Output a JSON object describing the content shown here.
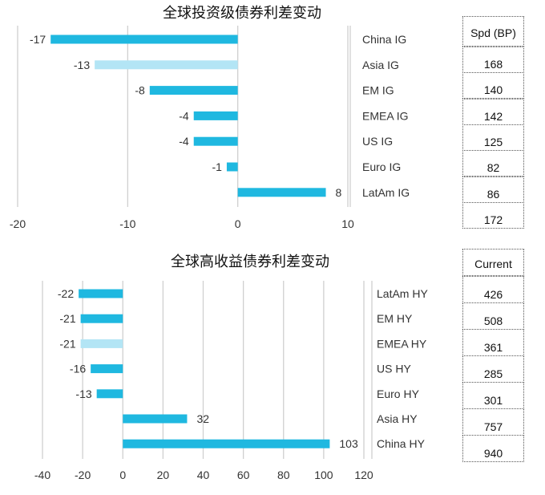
{
  "charts": [
    {
      "title": "全球投资级债券利差变动",
      "type": "bar",
      "orientation": "horizontal",
      "categories": [
        "China IG",
        "Asia IG",
        "EM IG",
        "EMEA IG",
        "US IG",
        "Euro IG",
        "LatAm IG"
      ],
      "values": [
        -17,
        -13,
        -8,
        -4,
        -4,
        -1,
        8
      ],
      "highlight_index": 1,
      "xlim": [
        -20,
        10
      ],
      "xticks": [
        "-20",
        "-10",
        "0",
        "10"
      ],
      "grid": true,
      "colors": {
        "bar": "#1FB8E0",
        "highlight": "#B3E5F5",
        "grid": "#D0D0D0"
      }
    },
    {
      "title": "全球高收益债券利差变动",
      "type": "bar",
      "orientation": "horizontal",
      "categories": [
        "LatAm HY",
        "EM HY",
        "EMEA HY",
        "US HY",
        "Euro HY",
        "Asia HY",
        "China HY"
      ],
      "values": [
        -22,
        -21,
        -21,
        -16,
        -13,
        32,
        103
      ],
      "highlight_index": 2,
      "xlim": [
        -40,
        120
      ],
      "xticks": [
        "-40",
        "-20",
        "0",
        "20",
        "40",
        "60",
        "80",
        "100",
        "120"
      ],
      "grid": true,
      "colors": {
        "bar": "#1FB8E0",
        "highlight": "#B3E5F5",
        "grid": "#D0D0D0"
      }
    }
  ],
  "chart_data": [
    {
      "type": "bar",
      "title": "全球投资级债券利差变动",
      "categories": [
        "China IG",
        "Asia IG",
        "EM IG",
        "EMEA IG",
        "US IG",
        "Euro IG",
        "LatAm IG"
      ],
      "values": [
        -17,
        -13,
        -8,
        -4,
        -4,
        -1,
        8
      ],
      "xlim": [
        -20,
        10
      ],
      "table": {
        "header": "Spd (BP)",
        "values": [
          "168",
          "140",
          "142",
          "125",
          "82",
          "86",
          "172"
        ]
      }
    },
    {
      "type": "bar",
      "title": "全球高收益债券利差变动",
      "categories": [
        "LatAm HY",
        "EM HY",
        "EMEA HY",
        "US HY",
        "Euro HY",
        "Asia HY",
        "China HY"
      ],
      "values": [
        -22,
        -21,
        -21,
        -16,
        -13,
        32,
        103
      ],
      "xlim": [
        -40,
        120
      ],
      "table": {
        "header": "Current",
        "values": [
          "426",
          "508",
          "361",
          "285",
          "301",
          "757",
          "940"
        ]
      }
    }
  ],
  "tables": [
    {
      "header": "Spd (BP)",
      "values": [
        "168",
        "140",
        "142",
        "125",
        "82",
        "86",
        "172"
      ]
    },
    {
      "header": "Current",
      "values": [
        "426",
        "508",
        "361",
        "285",
        "301",
        "757",
        "940"
      ]
    }
  ]
}
